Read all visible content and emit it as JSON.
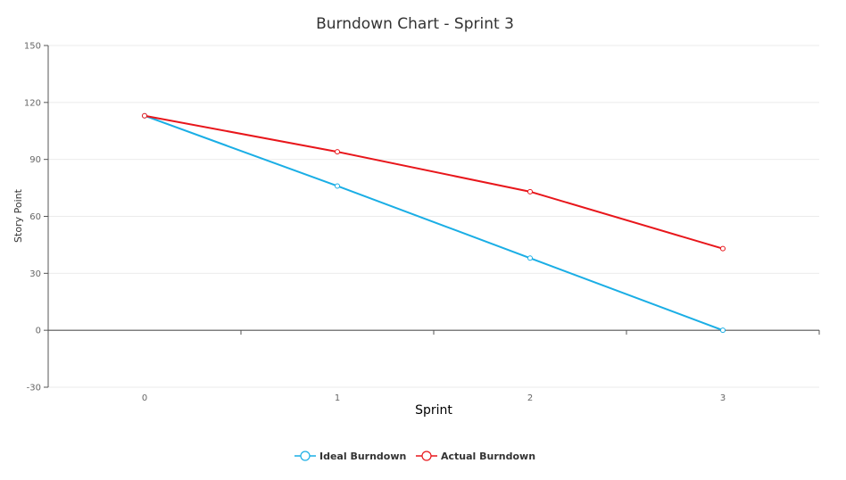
{
  "chart_data": {
    "type": "line",
    "title": "Burndown Chart - Sprint 3",
    "xlabel": "Sprint",
    "ylabel": "Story Point",
    "categories": [
      "0",
      "1",
      "2",
      "3"
    ],
    "ylim": [
      -30,
      150
    ],
    "yticks": [
      150,
      120,
      90,
      60,
      30,
      0,
      -30
    ],
    "grid": true,
    "legend": "bottom-center",
    "series": [
      {
        "name": "Ideal Burndown",
        "color": "#1aaee5",
        "values": [
          113,
          76,
          38,
          0
        ]
      },
      {
        "name": "Actual Burndown",
        "color": "#e8161b",
        "values": [
          113,
          94,
          73,
          43
        ]
      }
    ]
  }
}
